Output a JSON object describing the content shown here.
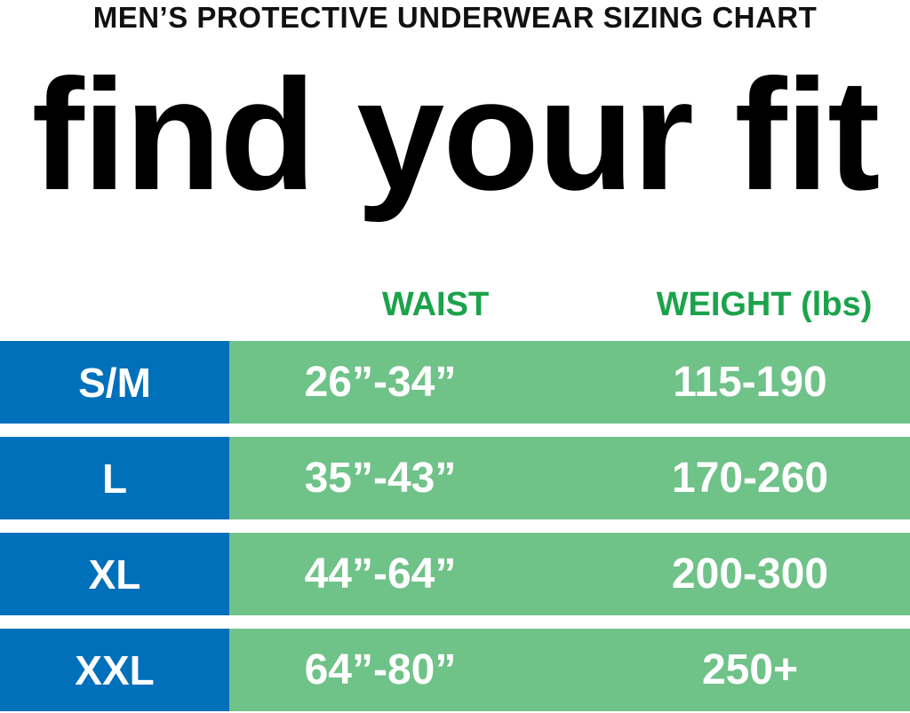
{
  "colors": {
    "size_bg": "#0070BA",
    "value_bg": "#6FC288",
    "header_text": "#1BA34B"
  },
  "subtitle": "MEN’S PROTECTIVE UNDERWEAR SIZING CHART",
  "title": "find your fit",
  "chart_data": {
    "type": "table",
    "columns": [
      "",
      "WAIST",
      "WEIGHT (lbs)"
    ],
    "rows": [
      {
        "size": "S/M",
        "waist": "26”-34”",
        "weight": "115-190"
      },
      {
        "size": "L",
        "waist": "35”-43”",
        "weight": "170-260"
      },
      {
        "size": "XL",
        "waist": "44”-64”",
        "weight": "200-300"
      },
      {
        "size": "XXL",
        "waist": "64”-80”",
        "weight": "250+"
      }
    ]
  }
}
